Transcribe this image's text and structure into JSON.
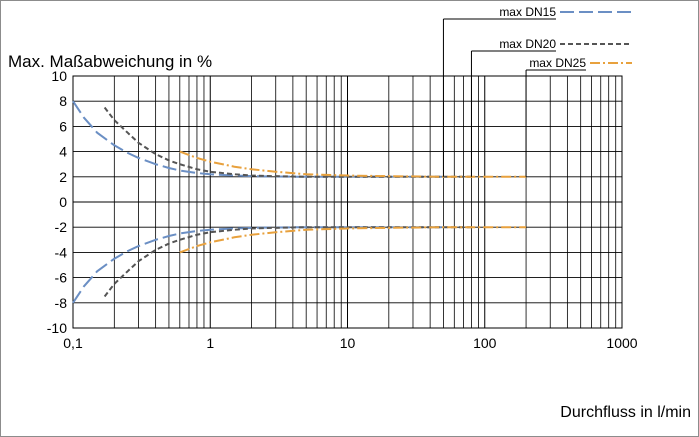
{
  "chart_data": {
    "type": "line",
    "title": "",
    "ylabel": "Max. Maßabweichung in %",
    "xlabel": "Durchfluss in l/min",
    "xscale": "log",
    "xlim": [
      0.1,
      1000
    ],
    "ylim": [
      -10,
      10
    ],
    "grid": true,
    "legend_position": "top-right",
    "x_ticks": [
      {
        "value": 0.1,
        "label": "0,1"
      },
      {
        "value": 1,
        "label": "1"
      },
      {
        "value": 10,
        "label": "10"
      },
      {
        "value": 100,
        "label": "100"
      },
      {
        "value": 1000,
        "label": "1000"
      }
    ],
    "y_ticks": [
      {
        "value": 10,
        "label": "10"
      },
      {
        "value": 8,
        "label": "8"
      },
      {
        "value": 6,
        "label": "6"
      },
      {
        "value": 4,
        "label": "4"
      },
      {
        "value": 2,
        "label": "2"
      },
      {
        "value": 0,
        "label": "0"
      },
      {
        "value": -2,
        "label": "-2"
      },
      {
        "value": -4,
        "label": "-4"
      },
      {
        "value": -6,
        "label": "-6"
      },
      {
        "value": -8,
        "label": "-8"
      },
      {
        "value": -10,
        "label": "-10"
      }
    ],
    "series": [
      {
        "name": "max DN15",
        "color": "#6b8fc4",
        "dash": "long-dash",
        "legend_anchor_x": 50,
        "upper": {
          "x": [
            0.1,
            0.12,
            0.15,
            0.2,
            0.25,
            0.3,
            0.4,
            0.5,
            0.6,
            0.8,
            1,
            1.5,
            2,
            3,
            5,
            10,
            20,
            50
          ],
          "y": [
            8.0,
            6.7,
            5.5,
            4.5,
            3.9,
            3.5,
            3.0,
            2.7,
            2.5,
            2.3,
            2.2,
            2.1,
            2.05,
            2.02,
            2.0,
            2.0,
            2.0,
            2.0
          ]
        },
        "lower": {
          "x": [
            0.1,
            0.12,
            0.15,
            0.2,
            0.25,
            0.3,
            0.4,
            0.5,
            0.6,
            0.8,
            1,
            1.5,
            2,
            3,
            5,
            10,
            20,
            50
          ],
          "y": [
            -8.0,
            -6.7,
            -5.5,
            -4.5,
            -3.9,
            -3.5,
            -3.0,
            -2.7,
            -2.5,
            -2.3,
            -2.2,
            -2.1,
            -2.05,
            -2.02,
            -2.0,
            -2.0,
            -2.0,
            -2.0
          ]
        }
      },
      {
        "name": "max DN20",
        "color": "#555555",
        "dash": "short-dash",
        "legend_anchor_x": 80,
        "upper": {
          "x": [
            0.17,
            0.2,
            0.25,
            0.3,
            0.4,
            0.5,
            0.6,
            0.8,
            1,
            1.5,
            2,
            3,
            5,
            10,
            20,
            50,
            80
          ],
          "y": [
            7.5,
            6.5,
            5.5,
            4.7,
            3.8,
            3.3,
            3.0,
            2.6,
            2.4,
            2.2,
            2.1,
            2.05,
            2.0,
            2.0,
            2.0,
            2.0,
            2.0
          ]
        },
        "lower": {
          "x": [
            0.17,
            0.2,
            0.25,
            0.3,
            0.4,
            0.5,
            0.6,
            0.8,
            1,
            1.5,
            2,
            3,
            5,
            10,
            20,
            50,
            80
          ],
          "y": [
            -7.5,
            -6.5,
            -5.5,
            -4.7,
            -3.8,
            -3.3,
            -3.0,
            -2.6,
            -2.4,
            -2.2,
            -2.1,
            -2.05,
            -2.0,
            -2.0,
            -2.0,
            -2.0,
            -2.0
          ]
        }
      },
      {
        "name": "max DN25",
        "color": "#e8a13d",
        "dash": "dash-dot",
        "legend_anchor_x": 200,
        "upper": {
          "x": [
            0.6,
            0.8,
            1,
            1.5,
            2,
            3,
            5,
            10,
            20,
            50,
            100,
            200
          ],
          "y": [
            4.0,
            3.5,
            3.2,
            2.8,
            2.6,
            2.4,
            2.2,
            2.1,
            2.05,
            2.0,
            2.0,
            2.0
          ]
        },
        "lower": {
          "x": [
            0.6,
            0.8,
            1,
            1.5,
            2,
            3,
            5,
            10,
            20,
            50,
            100,
            200
          ],
          "y": [
            -4.0,
            -3.5,
            -3.2,
            -2.8,
            -2.6,
            -2.4,
            -2.2,
            -2.1,
            -2.05,
            -2.0,
            -2.0,
            -2.0
          ]
        }
      }
    ]
  }
}
